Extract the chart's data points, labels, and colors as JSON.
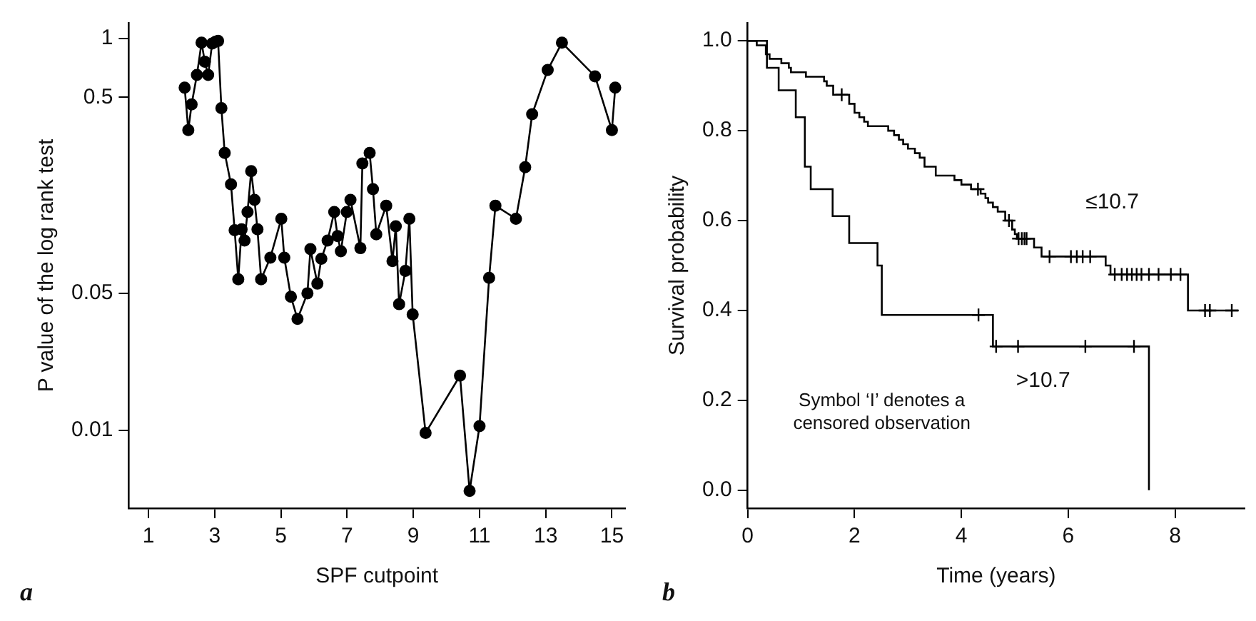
{
  "chart_data": [
    {
      "type": "line",
      "xlabel": "SPF cutpoint",
      "ylabel": "P value of the log rank test",
      "log": "y",
      "marker": "circle",
      "color": "#000000",
      "grid": false,
      "x": [
        2.09,
        2.2,
        2.3,
        2.46,
        2.6,
        2.7,
        2.8,
        2.92,
        3.02,
        3.1,
        3.2,
        3.3,
        3.49,
        3.6,
        3.71,
        3.81,
        3.9,
        3.99,
        4.1,
        4.2,
        4.29,
        4.4,
        4.68,
        5.01,
        5.1,
        5.3,
        5.5,
        5.8,
        5.89,
        6.1,
        6.22,
        6.41,
        6.61,
        6.71,
        6.81,
        6.99,
        7.1,
        7.4,
        7.46,
        7.68,
        7.78,
        7.88,
        8.18,
        8.37,
        8.47,
        8.57,
        8.76,
        8.88,
        8.98,
        9.37,
        10.41,
        10.7,
        11.0,
        11.29,
        11.48,
        12.1,
        12.38,
        12.59,
        13.06,
        13.49,
        14.49,
        15.0,
        15.1
      ],
      "values": [
        0.56,
        0.34,
        0.46,
        0.65,
        0.95,
        0.76,
        0.65,
        0.94,
        0.96,
        0.97,
        0.44,
        0.26,
        0.18,
        0.105,
        0.059,
        0.106,
        0.093,
        0.13,
        0.21,
        0.15,
        0.106,
        0.059,
        0.076,
        0.12,
        0.076,
        0.048,
        0.037,
        0.05,
        0.084,
        0.056,
        0.075,
        0.093,
        0.13,
        0.098,
        0.082,
        0.13,
        0.15,
        0.085,
        0.23,
        0.26,
        0.17,
        0.1,
        0.14,
        0.073,
        0.11,
        0.044,
        0.065,
        0.12,
        0.039,
        0.0097,
        0.019,
        0.0049,
        0.0105,
        0.06,
        0.14,
        0.12,
        0.22,
        0.41,
        0.69,
        0.95,
        0.64,
        0.34,
        0.56
      ],
      "xlim": [
        0.4,
        15.4
      ],
      "xticks": [
        1,
        3,
        5,
        7,
        9,
        11,
        13,
        15
      ],
      "ylim": [
        0.004,
        1.2
      ],
      "yticks": [
        0.01,
        0.05,
        0.5,
        1
      ],
      "annotations": [
        "a"
      ]
    },
    {
      "type": "step",
      "xlabel": "Time (years)",
      "ylabel": "Survival probability",
      "grid": false,
      "xlim": [
        0,
        9.3
      ],
      "xticks": [
        0,
        2,
        4,
        6,
        8
      ],
      "ylim": [
        -0.04,
        1.04
      ],
      "yticks": [
        {
          "value": 0,
          "label": "0.0"
        },
        {
          "value": 0.2,
          "label": "0.2"
        },
        {
          "value": 0.4,
          "label": "0.4"
        },
        {
          "value": 0.6,
          "label": "0.6"
        },
        {
          "value": 0.8,
          "label": "0.8"
        },
        {
          "value": 1,
          "label": "1.0"
        }
      ],
      "series": [
        {
          "name": "≤10.7",
          "marker": "none",
          "color": "#000000",
          "x": [
            0,
            0.17,
            0.26,
            0.34,
            0.41,
            0.54,
            0.63,
            0.77,
            0.81,
            1.09,
            1.43,
            1.48,
            1.55,
            1.6,
            1.9,
            2.0,
            2.09,
            2.18,
            2.25,
            2.63,
            2.74,
            2.83,
            2.91,
            3.0,
            3.13,
            3.22,
            3.31,
            3.52,
            3.87,
            4.0,
            4.18,
            4.36,
            4.45,
            4.5,
            4.59,
            4.68,
            4.82,
            4.95,
            5.0,
            5.04,
            5.36,
            5.5,
            6.7,
            6.79,
            8.24,
            9.19
          ],
          "values": [
            1,
            0.99,
            0.99,
            0.97,
            0.96,
            0.96,
            0.95,
            0.94,
            0.93,
            0.92,
            0.91,
            0.9,
            0.9,
            0.88,
            0.86,
            0.84,
            0.83,
            0.82,
            0.81,
            0.8,
            0.79,
            0.78,
            0.77,
            0.76,
            0.75,
            0.74,
            0.72,
            0.7,
            0.69,
            0.68,
            0.67,
            0.66,
            0.65,
            0.64,
            0.63,
            0.62,
            0.6,
            0.58,
            0.57,
            0.56,
            0.54,
            0.52,
            0.5,
            0.48,
            0.4,
            0.4
          ]
        },
        {
          "type": "scatter",
          "marker": "cross",
          "color": "#000000",
          "x": [
            1.76,
            4.31,
            4.89,
            5.07,
            5.13,
            5.18,
            5.22,
            5.65,
            6.05,
            6.16,
            6.27,
            6.41,
            6.87,
            7.0,
            7.1,
            7.19,
            7.28,
            7.37,
            7.51,
            7.69,
            7.92,
            8.1,
            8.56,
            8.65,
            9.06
          ],
          "values": [
            0.88,
            0.67,
            0.6,
            0.56,
            0.56,
            0.56,
            0.56,
            0.52,
            0.52,
            0.52,
            0.52,
            0.52,
            0.48,
            0.48,
            0.48,
            0.48,
            0.48,
            0.48,
            0.48,
            0.48,
            0.48,
            0.48,
            0.4,
            0.4,
            0.4
          ]
        },
        {
          "name": ">10.7",
          "marker": "none",
          "color": "#000000",
          "x": [
            0,
            0.36,
            0.58,
            0.9,
            1.07,
            1.18,
            1.59,
            1.9,
            2.43,
            2.51,
            4.59,
            7.51
          ],
          "values": [
            1,
            0.94,
            0.89,
            0.83,
            0.72,
            0.67,
            0.61,
            0.55,
            0.5,
            0.39,
            0.32,
            0
          ]
        },
        {
          "type": "scatter",
          "marker": "cross",
          "color": "#000000",
          "x": [
            4.32,
            4.65,
            5.06,
            6.32,
            7.23
          ],
          "values": [
            0.39,
            0.32,
            0.32,
            0.32,
            0.32
          ]
        }
      ],
      "annotations": [
        "b",
        "Symbol ‘I’ denotes a censored observation"
      ]
    }
  ]
}
